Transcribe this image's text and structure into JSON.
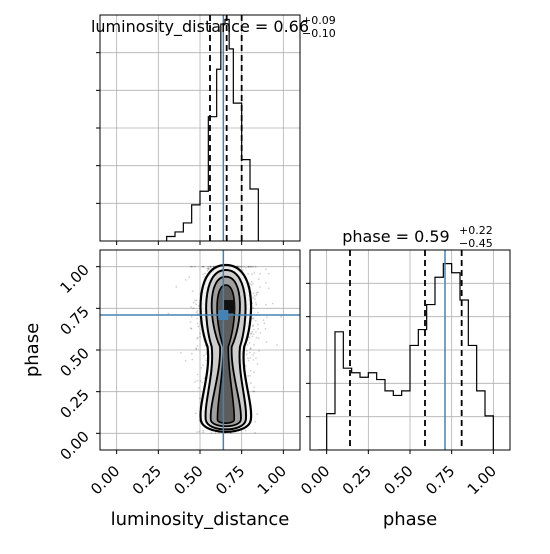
{
  "chart_data": [
    {
      "type": "histogram",
      "panel": "luminosity_distance-marginal",
      "title_param": "luminosity_distance",
      "title_value": "0.66",
      "title_plus": "+0.09",
      "title_minus": "−0.10",
      "xlim": [
        -0.1,
        1.1
      ],
      "bin_edges": [
        0.3,
        0.35,
        0.4,
        0.45,
        0.5,
        0.55,
        0.6,
        0.625,
        0.65,
        0.675,
        0.7,
        0.75,
        0.8,
        0.85
      ],
      "density": [
        0.02,
        0.04,
        0.08,
        0.16,
        0.22,
        0.55,
        0.76,
        0.96,
        0.98,
        0.85,
        0.61,
        0.36,
        0.23
      ],
      "quantiles": [
        0.56,
        0.66,
        0.75
      ],
      "truth": 0.64,
      "grid": true
    },
    {
      "type": "histogram",
      "panel": "phase-marginal",
      "title_param": "phase",
      "title_value": "0.59",
      "title_plus": "+0.22",
      "title_minus": "−0.45",
      "xlabel": "phase",
      "xlim": [
        -0.1,
        1.1
      ],
      "xticks": [
        "0.00",
        "0.25",
        "0.50",
        "0.75",
        "1.00"
      ],
      "xtick_values": [
        0.0,
        0.25,
        0.5,
        0.75,
        1.0
      ],
      "bin_edges": [
        -0.05,
        0.0,
        0.05,
        0.1,
        0.15,
        0.2,
        0.25,
        0.3,
        0.35,
        0.4,
        0.45,
        0.5,
        0.55,
        0.6,
        0.65,
        0.7,
        0.75,
        0.8,
        0.85,
        0.9,
        0.95,
        1.0
      ],
      "density": [
        0.0,
        0.16,
        0.52,
        0.36,
        0.34,
        0.32,
        0.34,
        0.31,
        0.26,
        0.24,
        0.26,
        0.46,
        0.53,
        0.64,
        0.76,
        0.82,
        0.78,
        0.66,
        0.46,
        0.26,
        0.15
      ],
      "quantiles": [
        0.14,
        0.59,
        0.81
      ],
      "truth": 0.71,
      "grid": true
    },
    {
      "type": "scatter-2d-density",
      "panel": "luminosity_distance-vs-phase",
      "xlabel": "luminosity_distance",
      "ylabel": "phase",
      "xlim": [
        -0.1,
        1.1
      ],
      "ylim": [
        -0.1,
        1.1
      ],
      "xticks": [
        "0.00",
        "0.25",
        "0.50",
        "0.75",
        "1.00"
      ],
      "xtick_values": [
        0.0,
        0.25,
        0.5,
        0.75,
        1.0
      ],
      "yticks": [
        "0.00",
        "0.25",
        "0.50",
        "0.75",
        "1.00"
      ],
      "ytick_values": [
        0.0,
        0.25,
        0.5,
        0.75,
        1.0
      ],
      "truth": {
        "x": 0.64,
        "y": 0.71
      },
      "contour_levels": [
        "0.5σ",
        "1σ",
        "1.5σ",
        "2σ"
      ],
      "colors": {
        "truth": "#4682b4",
        "points": "#000000"
      },
      "grid": true
    }
  ]
}
